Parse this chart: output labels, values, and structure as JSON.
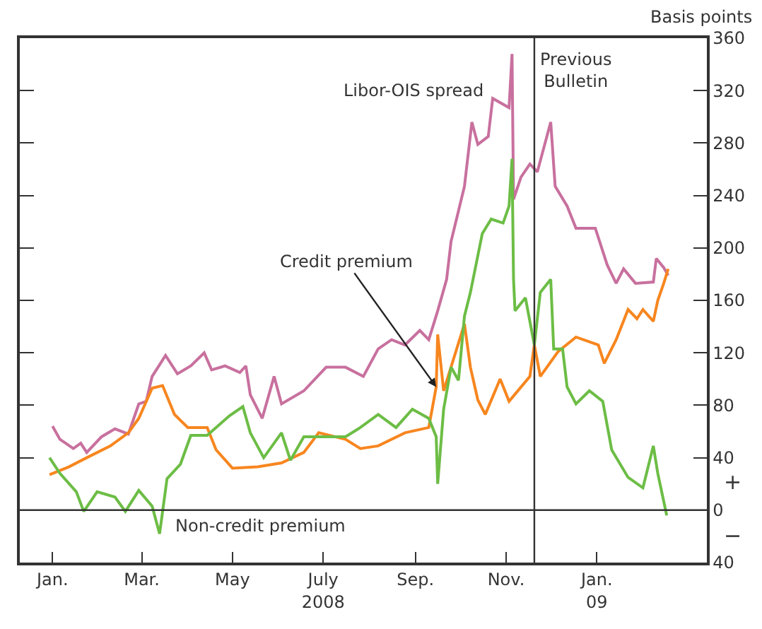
{
  "chart_data": {
    "type": "line",
    "ylabel": "Basis points",
    "xlim": [
      "2007-12-10",
      "2009-03-16"
    ],
    "xticks": [
      {
        "value": "2008-01-01",
        "label": "Jan."
      },
      {
        "value": "2008-03-01",
        "label": "Mar."
      },
      {
        "value": "2008-05-01",
        "label": "May"
      },
      {
        "value": "2008-07-01",
        "label": "July\n2008"
      },
      {
        "value": "2008-09-01",
        "label": "Sep."
      },
      {
        "value": "2008-11-01",
        "label": "Nov."
      },
      {
        "value": "2009-01-01",
        "label": "Jan.\n09"
      }
    ],
    "ylim": [
      -40,
      360
    ],
    "yticks": [
      {
        "value": -40,
        "label": "40"
      },
      0,
      40,
      80,
      120,
      160,
      200,
      240,
      280,
      320,
      360
    ],
    "marker": "none",
    "line_style": "solid",
    "series": [
      {
        "color": "#c8709e",
        "x": [
          "2008-01-01",
          "2008-01-06",
          "2008-01-15",
          "2008-01-20",
          "2008-01-24",
          "2008-02-03",
          "2008-02-12",
          "2008-02-21",
          "2008-02-28",
          "2008-03-04",
          "2008-03-08",
          "2008-03-17",
          "2008-03-25",
          "2008-04-03",
          "2008-04-12",
          "2008-04-17",
          "2008-04-26",
          "2008-05-06",
          "2008-05-10",
          "2008-05-13",
          "2008-05-21",
          "2008-05-29",
          "2008-06-03",
          "2008-06-18",
          "2008-07-03",
          "2008-07-16",
          "2008-07-28",
          "2008-08-07",
          "2008-08-16",
          "2008-08-25",
          "2008-09-04",
          "2008-09-10",
          "2008-09-16",
          "2008-09-22",
          "2008-09-25",
          "2008-10-04",
          "2008-10-09",
          "2008-10-13",
          "2008-10-20",
          "2008-10-23",
          "2008-11-03",
          "2008-11-05",
          "2008-11-06",
          "2008-11-11",
          "2008-11-17",
          "2008-11-22",
          "2008-12-01",
          "2008-12-04",
          "2008-12-12",
          "2008-12-18",
          "2008-12-31",
          "2009-01-08",
          "2009-01-14",
          "2009-01-19",
          "2009-01-27",
          "2009-02-08",
          "2009-02-10",
          "2009-02-15",
          "2009-02-18"
        ],
        "values": [
          64,
          54,
          47,
          51,
          44,
          56,
          62,
          58,
          81,
          83,
          102,
          118,
          104,
          110,
          120,
          107,
          110,
          105,
          110,
          88,
          70,
          102,
          81,
          91,
          109,
          109,
          102,
          123,
          130,
          126,
          137,
          130,
          152,
          176,
          205,
          247,
          296,
          279,
          285,
          314,
          307,
          348,
          237,
          254,
          264,
          258,
          296,
          247,
          232,
          215,
          215,
          187,
          173,
          184,
          173,
          174,
          192,
          185,
          179
        ]
      },
      {
        "color": "#f7861f",
        "x": [
          "2007-12-30",
          "2008-01-12",
          "2008-01-24",
          "2008-02-09",
          "2008-02-21",
          "2008-02-28",
          "2008-03-08",
          "2008-03-15",
          "2008-03-23",
          "2008-04-01",
          "2008-04-14",
          "2008-04-20",
          "2008-05-01",
          "2008-05-18",
          "2008-06-03",
          "2008-06-18",
          "2008-06-28",
          "2008-07-16",
          "2008-07-26",
          "2008-08-07",
          "2008-08-25",
          "2008-09-10",
          "2008-09-15",
          "2008-09-16",
          "2008-09-20",
          "2008-10-04",
          "2008-10-08",
          "2008-10-13",
          "2008-10-18",
          "2008-10-28",
          "2008-11-03",
          "2008-11-17",
          "2008-11-20",
          "2008-11-24",
          "2008-12-06",
          "2008-12-18",
          "2009-01-02",
          "2009-01-06",
          "2009-01-14",
          "2009-01-22",
          "2009-01-28",
          "2009-02-01",
          "2009-02-08",
          "2009-02-11",
          "2009-02-15",
          "2009-02-18"
        ],
        "values": [
          27,
          33,
          40,
          49,
          59,
          70,
          93,
          95,
          73,
          63,
          63,
          46,
          32,
          33,
          36,
          44,
          59,
          54,
          47,
          49,
          59,
          63,
          94,
          134,
          91,
          142,
          109,
          84,
          73,
          100,
          83,
          102,
          126,
          102,
          121,
          132,
          126,
          112,
          130,
          153,
          146,
          153,
          144,
          160,
          173,
          184
        ]
      },
      {
        "color": "#6cbd45",
        "x": [
          "2007-12-30",
          "2008-01-06",
          "2008-01-17",
          "2008-01-22",
          "2008-01-31",
          "2008-02-12",
          "2008-02-19",
          "2008-02-28",
          "2008-03-08",
          "2008-03-13",
          "2008-03-18",
          "2008-03-27",
          "2008-04-03",
          "2008-04-14",
          "2008-04-29",
          "2008-05-08",
          "2008-05-13",
          "2008-05-22",
          "2008-06-03",
          "2008-06-09",
          "2008-06-18",
          "2008-07-01",
          "2008-07-16",
          "2008-07-26",
          "2008-08-07",
          "2008-08-19",
          "2008-08-30",
          "2008-09-10",
          "2008-09-15",
          "2008-09-16",
          "2008-09-20",
          "2008-09-25",
          "2008-09-30",
          "2008-10-04",
          "2008-10-08",
          "2008-10-16",
          "2008-10-22",
          "2008-10-30",
          "2008-11-03",
          "2008-11-05",
          "2008-11-06",
          "2008-11-07",
          "2008-11-14",
          "2008-11-20",
          "2008-11-24",
          "2008-12-01",
          "2008-12-03",
          "2008-12-09",
          "2008-12-12",
          "2008-12-18",
          "2008-12-27",
          "2009-01-05",
          "2009-01-11",
          "2009-01-22",
          "2009-02-01",
          "2009-02-08",
          "2009-02-11",
          "2009-02-17"
        ],
        "values": [
          40,
          28,
          14,
          -1,
          14,
          10,
          -1,
          15,
          3,
          -18,
          24,
          35,
          57,
          57,
          72,
          79,
          59,
          40,
          59,
          38,
          56,
          56,
          56,
          63,
          73,
          63,
          77,
          70,
          56,
          20,
          77,
          109,
          99,
          148,
          166,
          211,
          222,
          219,
          232,
          268,
          176,
          152,
          162,
          126,
          166,
          176,
          123,
          123,
          94,
          81,
          91,
          83,
          46,
          25,
          17,
          49,
          28,
          -4
        ]
      }
    ],
    "ref_lines": [
      {
        "axis": "y",
        "value": 0
      },
      {
        "axis": "x",
        "value": "2008-11-20",
        "label": "Previous\nBulletin"
      }
    ],
    "annotations": [
      "Libor-OIS spread",
      {
        "text": "Credit premium",
        "x": "2008-09-15",
        "y": 94
      },
      "Non-credit premium",
      "+",
      "−"
    ]
  }
}
